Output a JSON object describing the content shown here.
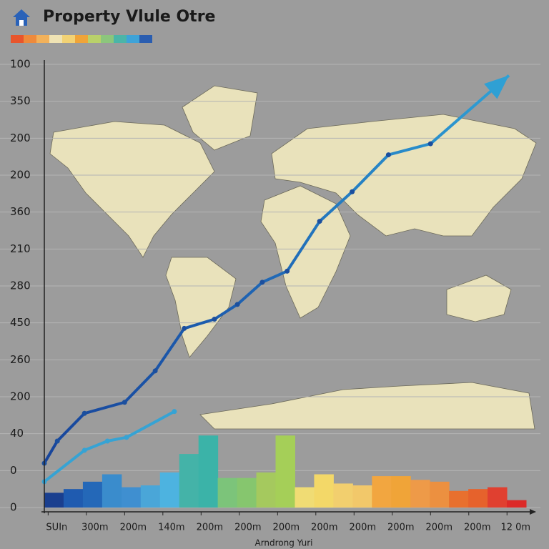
{
  "chart_data": {
    "type": "bar_line",
    "title": "Property Vlule Otre",
    "xlabel": "Arndrong Yuri",
    "ylim": [
      0,
      12
    ],
    "yticks": [
      {
        "value": 0,
        "label": "0"
      },
      {
        "value": 1,
        "label": "0"
      },
      {
        "value": 2,
        "label": "40"
      },
      {
        "value": 3,
        "label": "200"
      },
      {
        "value": 4,
        "label": "260"
      },
      {
        "value": 5,
        "label": "450"
      },
      {
        "value": 6,
        "label": "280"
      },
      {
        "value": 7,
        "label": "210"
      },
      {
        "value": 8,
        "label": "360"
      },
      {
        "value": 9,
        "label": "200"
      },
      {
        "value": 10,
        "label": "200"
      },
      {
        "value": 11,
        "label": "350"
      },
      {
        "value": 12,
        "label": "100"
      }
    ],
    "xlim": [
      -0.1,
      12.5
    ],
    "xticks": [
      {
        "value": 0,
        "label": "SUIn"
      },
      {
        "value": 1,
        "label": "300m"
      },
      {
        "value": 2,
        "label": "200m"
      },
      {
        "value": 3,
        "label": "140m"
      },
      {
        "value": 4,
        "label": "200m"
      },
      {
        "value": 5,
        "label": "200m"
      },
      {
        "value": 6,
        "label": "200m"
      },
      {
        "value": 7,
        "label": "200m"
      },
      {
        "value": 8,
        "label": "200m"
      },
      {
        "value": 9,
        "label": "200m"
      },
      {
        "value": 10,
        "label": "200m"
      },
      {
        "value": 11,
        "label": "200m"
      },
      {
        "value": 12,
        "label": "12 0m"
      }
    ],
    "grid": true,
    "bars": {
      "categories": [
        null,
        null,
        null,
        null,
        null,
        null,
        null,
        null,
        null,
        null,
        null,
        null,
        null,
        null,
        null,
        null,
        null,
        null,
        null,
        null,
        null,
        null,
        null,
        null,
        null
      ],
      "values": [
        0.4,
        0.5,
        0.7,
        0.9,
        0.55,
        0.6,
        0.95,
        1.45,
        1.95,
        0.8,
        0.8,
        0.95,
        1.95,
        0.55,
        0.9,
        0.65,
        0.6,
        0.85,
        0.85,
        0.75,
        0.7,
        0.45,
        0.5,
        0.55,
        0.2
      ],
      "colors": [
        "#1a3f8f",
        "#1f5bb0",
        "#2468b8",
        "#3a8ccc",
        "#3f8fd0",
        "#4aa6d8",
        "#4db3e0",
        "#44b3a8",
        "#3bb3a8",
        "#7cc47a",
        "#86c66e",
        "#a5c95e",
        "#a5cf58",
        "#f0dc74",
        "#f3d868",
        "#f2cf6e",
        "#f2c86a",
        "#f2a640",
        "#f0a438",
        "#ee9a48",
        "#ec9040",
        "#e8702e",
        "#e6622c",
        "#e04030",
        "#dc2a28"
      ]
    },
    "series": [
      {
        "color": "#1b4f9e",
        "color_end": "#2fa0d4",
        "x": [
          -0.1,
          0.24,
          0.95,
          2.0,
          2.8,
          3.56,
          4.35,
          4.95,
          5.6,
          6.25,
          7.1,
          7.95,
          8.9,
          10.0,
          12.05
        ],
        "values": [
          1.2,
          1.8,
          2.55,
          2.85,
          3.7,
          4.85,
          5.1,
          5.5,
          6.1,
          6.4,
          7.75,
          8.55,
          9.55,
          9.85,
          11.7
        ]
      },
      {
        "color": "#36a3d4",
        "x": [
          -0.1,
          0.95,
          1.55,
          2.05,
          3.3
        ],
        "values": [
          0.7,
          1.55,
          1.8,
          1.9,
          2.6
        ]
      }
    ]
  }
}
